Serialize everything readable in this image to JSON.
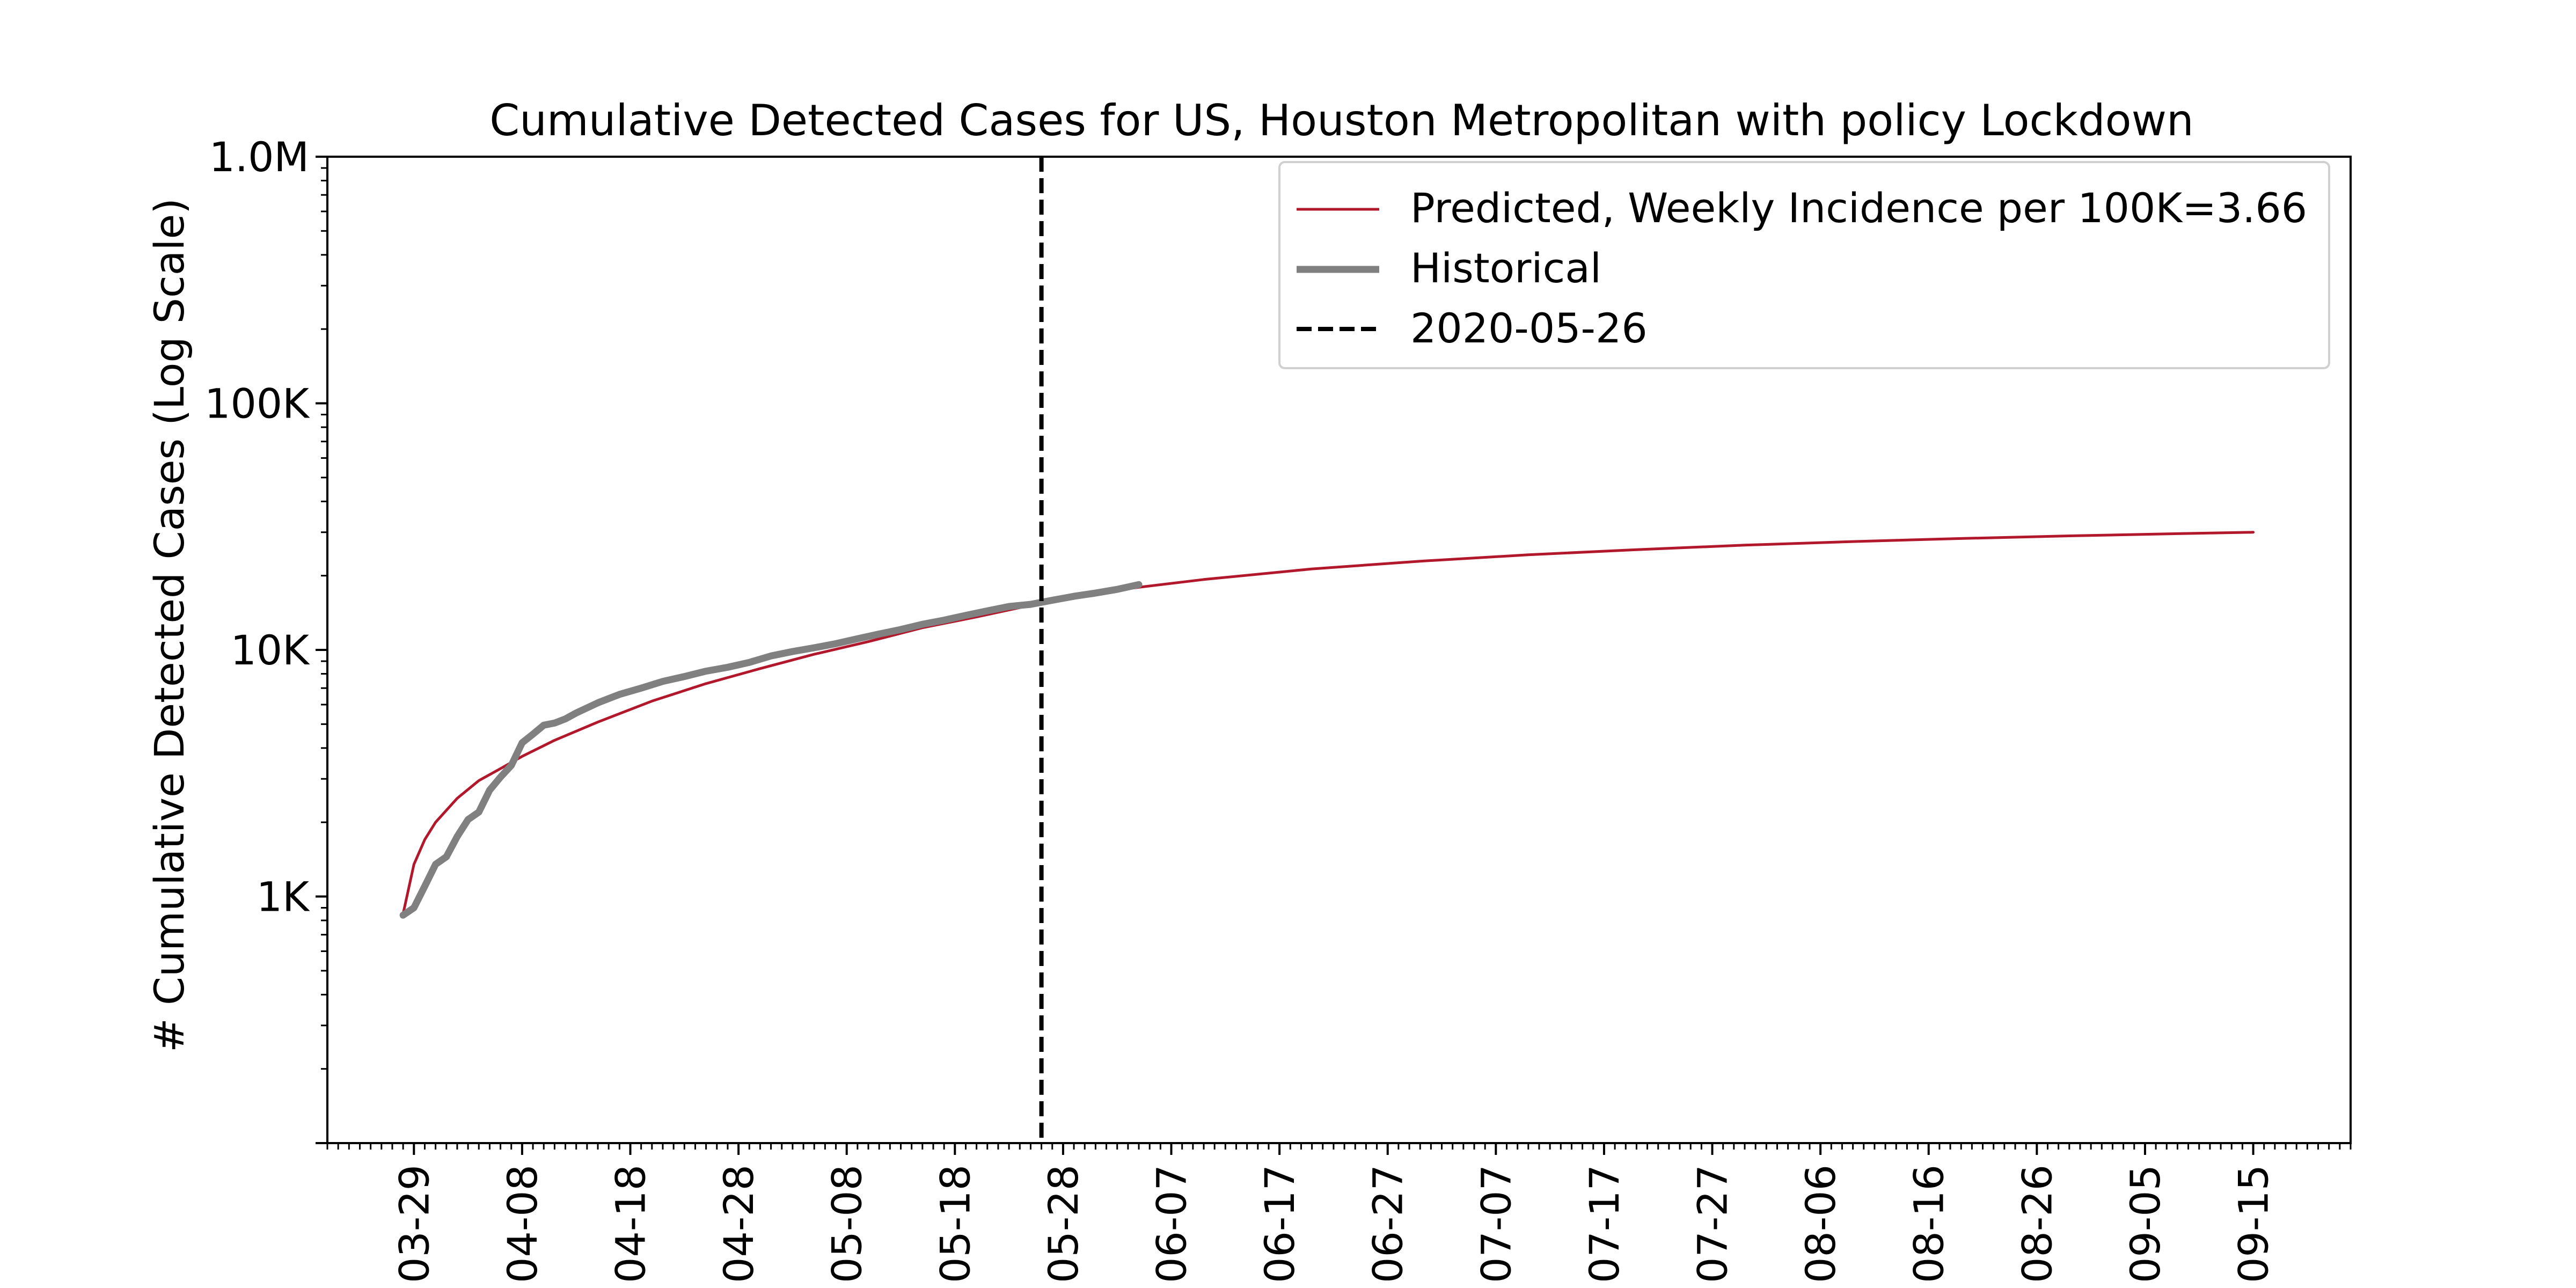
{
  "chart_data": {
    "type": "line",
    "title": "Cumulative Detected Cases for US, Houston Metropolitan with policy Lockdown",
    "xlabel": "",
    "ylabel": "# Cumulative Detected Cases (Log Scale)",
    "yscale": "log",
    "ylim": [
      100,
      1000000
    ],
    "xlim": [
      "2020-03-21",
      "2020-09-24"
    ],
    "grid": false,
    "legend_position": "top-right",
    "y_ticks": [
      {
        "value": 1000,
        "label": "1K"
      },
      {
        "value": 10000,
        "label": "10K"
      },
      {
        "value": 100000,
        "label": "100K"
      },
      {
        "value": 1000000,
        "label": "1.0M"
      }
    ],
    "x_ticks": [
      "03-29",
      "04-08",
      "04-18",
      "04-28",
      "05-08",
      "05-18",
      "05-28",
      "06-07",
      "06-17",
      "06-27",
      "07-07",
      "07-17",
      "07-27",
      "08-06",
      "08-16",
      "08-26",
      "09-05",
      "09-15"
    ],
    "x_tick_dates": [
      "2020-03-29",
      "2020-04-08",
      "2020-04-18",
      "2020-04-28",
      "2020-05-08",
      "2020-05-18",
      "2020-05-28",
      "2020-06-07",
      "2020-06-17",
      "2020-06-27",
      "2020-07-07",
      "2020-07-17",
      "2020-07-27",
      "2020-08-06",
      "2020-08-16",
      "2020-08-26",
      "2020-09-05",
      "2020-09-15"
    ],
    "vline": {
      "date": "2020-05-26",
      "label": "2020-05-26",
      "color": "#000000"
    },
    "series": [
      {
        "name": "Predicted, Weekly Incidence per 100K=3.66",
        "color": "#b2182b",
        "points": [
          [
            "2020-03-28",
            850
          ],
          [
            "2020-03-29",
            1350
          ],
          [
            "2020-03-30",
            1700
          ],
          [
            "2020-03-31",
            2000
          ],
          [
            "2020-04-02",
            2500
          ],
          [
            "2020-04-04",
            2950
          ],
          [
            "2020-04-06",
            3300
          ],
          [
            "2020-04-08",
            3700
          ],
          [
            "2020-04-11",
            4300
          ],
          [
            "2020-04-15",
            5100
          ],
          [
            "2020-04-20",
            6200
          ],
          [
            "2020-04-25",
            7300
          ],
          [
            "2020-04-30",
            8400
          ],
          [
            "2020-05-05",
            9600
          ],
          [
            "2020-05-10",
            10800
          ],
          [
            "2020-05-15",
            12300
          ],
          [
            "2020-05-20",
            13600
          ],
          [
            "2020-05-26",
            15500
          ],
          [
            "2020-06-01",
            17300
          ],
          [
            "2020-06-10",
            19300
          ],
          [
            "2020-06-20",
            21300
          ],
          [
            "2020-06-30",
            22900
          ],
          [
            "2020-07-10",
            24300
          ],
          [
            "2020-07-20",
            25500
          ],
          [
            "2020-07-30",
            26600
          ],
          [
            "2020-08-09",
            27500
          ],
          [
            "2020-08-19",
            28300
          ],
          [
            "2020-08-29",
            29000
          ],
          [
            "2020-09-08",
            29600
          ],
          [
            "2020-09-15",
            30000
          ]
        ]
      },
      {
        "name": "Historical",
        "color": "#808080",
        "points": [
          [
            "2020-03-28",
            840
          ],
          [
            "2020-03-29",
            900
          ],
          [
            "2020-03-30",
            1100
          ],
          [
            "2020-03-31",
            1350
          ],
          [
            "2020-04-01",
            1450
          ],
          [
            "2020-04-02",
            1750
          ],
          [
            "2020-04-03",
            2050
          ],
          [
            "2020-04-04",
            2200
          ],
          [
            "2020-04-05",
            2700
          ],
          [
            "2020-04-06",
            3050
          ],
          [
            "2020-04-07",
            3400
          ],
          [
            "2020-04-08",
            4200
          ],
          [
            "2020-04-09",
            4550
          ],
          [
            "2020-04-10",
            4950
          ],
          [
            "2020-04-11",
            5050
          ],
          [
            "2020-04-12",
            5250
          ],
          [
            "2020-04-13",
            5550
          ],
          [
            "2020-04-15",
            6100
          ],
          [
            "2020-04-17",
            6600
          ],
          [
            "2020-04-19",
            7000
          ],
          [
            "2020-04-21",
            7450
          ],
          [
            "2020-04-23",
            7800
          ],
          [
            "2020-04-25",
            8200
          ],
          [
            "2020-04-27",
            8500
          ],
          [
            "2020-04-29",
            8900
          ],
          [
            "2020-05-01",
            9450
          ],
          [
            "2020-05-03",
            9850
          ],
          [
            "2020-05-05",
            10200
          ],
          [
            "2020-05-07",
            10600
          ],
          [
            "2020-05-09",
            11100
          ],
          [
            "2020-05-11",
            11600
          ],
          [
            "2020-05-13",
            12100
          ],
          [
            "2020-05-15",
            12700
          ],
          [
            "2020-05-17",
            13200
          ],
          [
            "2020-05-19",
            13800
          ],
          [
            "2020-05-21",
            14400
          ],
          [
            "2020-05-23",
            15000
          ],
          [
            "2020-05-25",
            15300
          ],
          [
            "2020-05-27",
            15900
          ],
          [
            "2020-05-29",
            16500
          ],
          [
            "2020-05-31",
            17000
          ],
          [
            "2020-06-02",
            17600
          ],
          [
            "2020-06-04",
            18400
          ]
        ]
      }
    ]
  }
}
